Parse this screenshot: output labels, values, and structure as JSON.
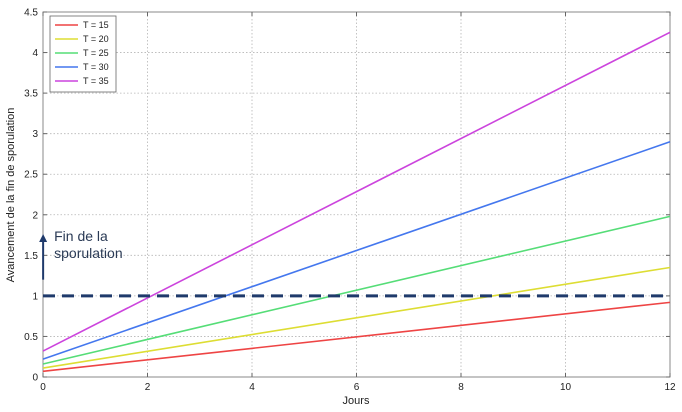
{
  "chart_data": {
    "type": "line",
    "xlabel": "Jours",
    "ylabel": "Avancement de la fin de sporulation",
    "xlim": [
      0,
      12
    ],
    "ylim": [
      0,
      4.5
    ],
    "xticks": [
      0,
      2,
      4,
      6,
      8,
      10,
      12
    ],
    "yticks": [
      0,
      0.5,
      1,
      1.5,
      2,
      2.5,
      3,
      3.5,
      4,
      4.5
    ],
    "grid": true,
    "legend_position": "top-left",
    "series": [
      {
        "name": "T = 15",
        "color": "#ee4444",
        "x": [
          0,
          12
        ],
        "y": [
          0.07,
          0.92
        ]
      },
      {
        "name": "T = 20",
        "color": "#dddd33",
        "x": [
          0,
          12
        ],
        "y": [
          0.11,
          1.35
        ]
      },
      {
        "name": "T = 25",
        "color": "#55dd77",
        "x": [
          0,
          12
        ],
        "y": [
          0.16,
          1.98
        ]
      },
      {
        "name": "T = 30",
        "color": "#4477ee",
        "x": [
          0,
          12
        ],
        "y": [
          0.22,
          2.9
        ]
      },
      {
        "name": "T = 35",
        "color": "#cc44dd",
        "x": [
          0,
          12
        ],
        "y": [
          0.32,
          4.25
        ]
      }
    ],
    "threshold": {
      "y": 1,
      "color": "#1f3a6b",
      "style": "dashed"
    },
    "annotation": {
      "lines": [
        "Fin de la",
        "sporulation"
      ],
      "x": 0.5,
      "y": 1.6,
      "arrow_from_y": 1.2,
      "arrow_to_y": 1.75
    }
  }
}
